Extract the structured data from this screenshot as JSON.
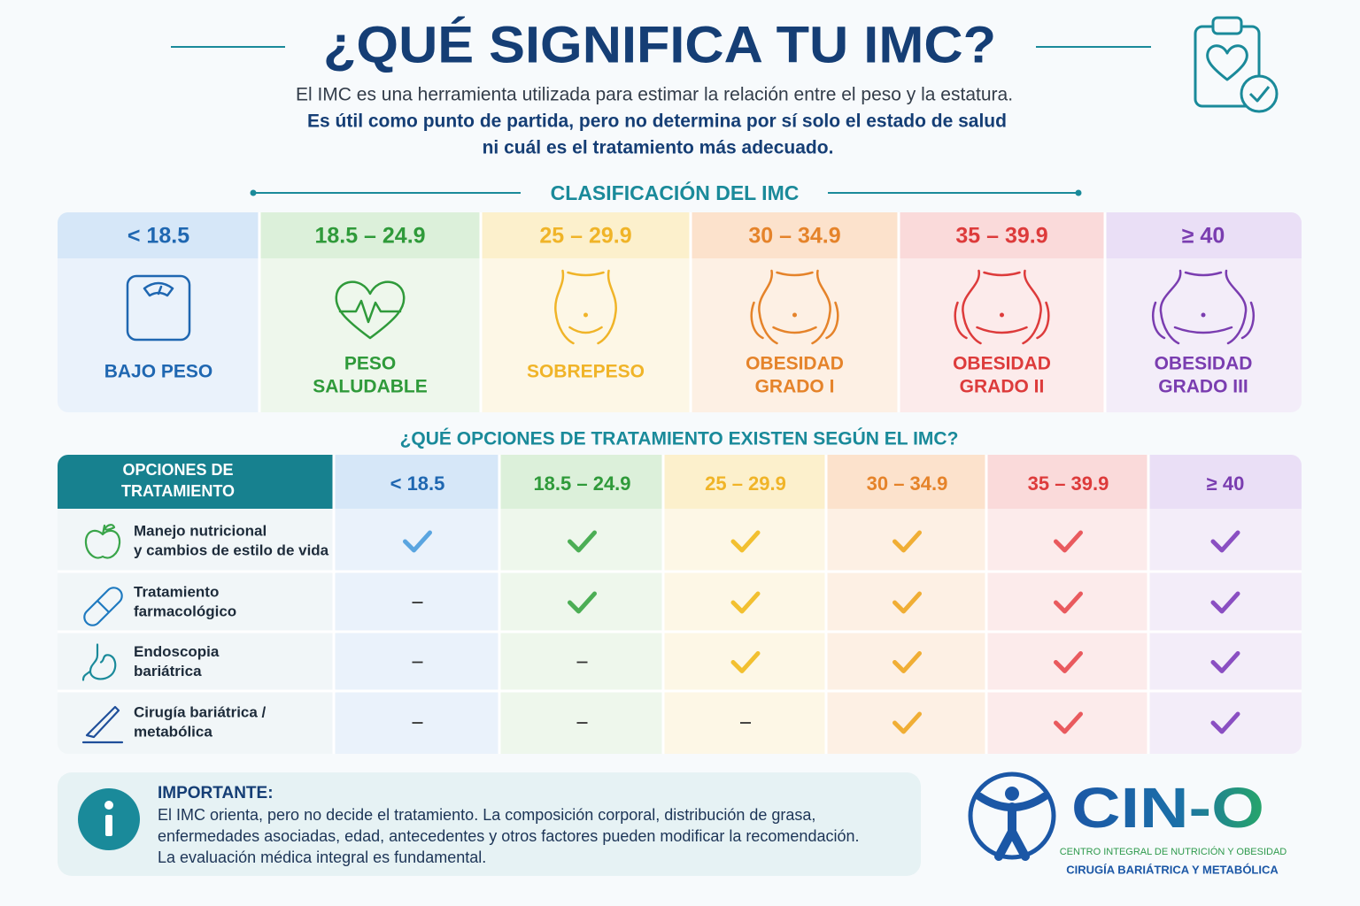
{
  "header": {
    "title": "¿QUÉ SIGNIFICA TU IMC?",
    "intro": "El IMC es una herramienta utilizada para estimar la relación entre el peso y la estatura.",
    "emphasis": [
      "Es útil como punto de partida, pero no determina por sí solo el estado de salud",
      "ni cuál es el tratamiento más adecuado."
    ]
  },
  "classification": {
    "title": "CLASIFICACIÓN DEL IMC",
    "categories": [
      {
        "range": "< 18.5",
        "label": [
          "BAJO PESO"
        ],
        "color": "#1f67b1",
        "check": "#5aa5e0",
        "tint": "#d6e7f8",
        "soft": "#eaf2fb"
      },
      {
        "range": "18.5 – 24.9",
        "label": [
          "PESO",
          "SALUDABLE"
        ],
        "color": "#2f9a3a",
        "check": "#4cae55",
        "tint": "#dcf0da",
        "soft": "#eef7ec"
      },
      {
        "range": "25 – 29.9",
        "label": [
          "SOBREPESO"
        ],
        "color": "#f0b428",
        "check": "#f2c030",
        "tint": "#fcf0cc",
        "soft": "#fdf7e6"
      },
      {
        "range": "30 – 34.9",
        "label": [
          "OBESIDAD",
          "GRADO I"
        ],
        "color": "#e5832a",
        "check": "#f0ae35",
        "tint": "#fce2cc",
        "soft": "#fdf0e4"
      },
      {
        "range": "35 – 39.9",
        "label": [
          "OBESIDAD",
          "GRADO II"
        ],
        "color": "#dd3b3b",
        "check": "#e95a5e",
        "tint": "#fadada",
        "soft": "#fcebeb"
      },
      {
        "range": "≥ 40",
        "label": [
          "OBESIDAD",
          "GRADO III"
        ],
        "color": "#7a3db0",
        "check": "#8a4fc2",
        "tint": "#eadff6",
        "soft": "#f3edf9"
      }
    ]
  },
  "treatment": {
    "title": "¿QUÉ OPCIONES DE TRATAMIENTO EXISTEN SEGÚN EL IMC?",
    "header": [
      "OPCIONES DE",
      "TRATAMIENTO"
    ],
    "rows": [
      {
        "label": [
          "Manejo nutricional",
          "y cambios de estilo de vida"
        ],
        "available": [
          true,
          true,
          true,
          true,
          true,
          true
        ]
      },
      {
        "label": [
          "Tratamiento",
          "farmacológico"
        ],
        "available": [
          false,
          true,
          true,
          true,
          true,
          true
        ]
      },
      {
        "label": [
          "Endoscopia",
          "bariátrica"
        ],
        "available": [
          false,
          false,
          true,
          true,
          true,
          true
        ]
      },
      {
        "label": [
          "Cirugía bariátrica /",
          "metabólica"
        ],
        "available": [
          false,
          false,
          false,
          true,
          true,
          true
        ]
      }
    ]
  },
  "notice": {
    "title": "IMPORTANTE:",
    "lines": [
      "El IMC orienta, pero no decide el tratamiento. La composición corporal, distribución de grasa,",
      "enfermedades asociadas, edad, antecedentes y otros factores pueden modificar la recomendación.",
      "La evaluación médica integral es fundamental."
    ]
  },
  "logo": {
    "name": "CIN-O",
    "line1": "CENTRO INTEGRAL DE NUTRICIÓN Y OBESIDAD",
    "line2": "CIRUGÍA BARIÁTRICA Y METABÓLICA"
  }
}
